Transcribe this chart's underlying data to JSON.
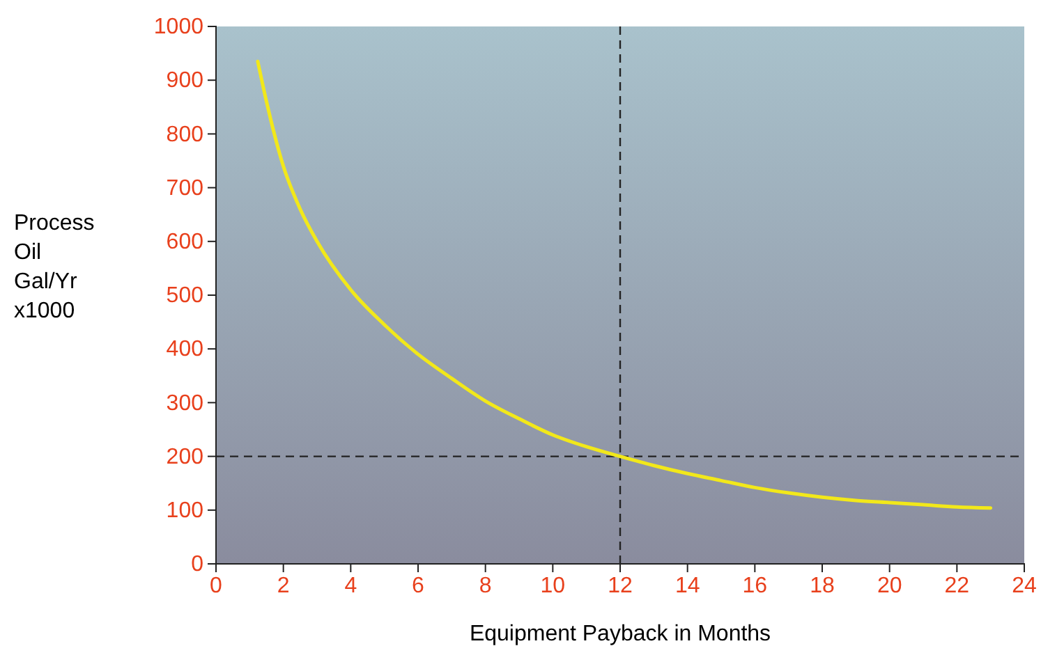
{
  "chart_data": {
    "type": "line",
    "xlabel": "Equipment Payback in Months",
    "ylabel": "Process Oil Gal/Yr x1000",
    "x": [
      1.24,
      1.5,
      2,
      2.5,
      3,
      4,
      5,
      6,
      7,
      8,
      9,
      10,
      11,
      12,
      13,
      14,
      15,
      16,
      17,
      18,
      19,
      20,
      21,
      22,
      23
    ],
    "series": [
      {
        "color": "#f2e81a",
        "values": [
          935,
          860,
          740,
          660,
          600,
          510,
          445,
          390,
          345,
          303,
          270,
          240,
          218,
          200,
          183,
          168,
          155,
          142,
          132,
          124,
          118,
          114,
          110,
          106,
          104
        ]
      }
    ],
    "xlim": [
      0,
      24
    ],
    "xticks": [
      0,
      2,
      4,
      6,
      8,
      10,
      12,
      14,
      16,
      18,
      20,
      22,
      24
    ],
    "ylim": [
      0,
      1000
    ],
    "yticks": [
      0,
      100,
      200,
      300,
      400,
      500,
      600,
      700,
      800,
      900,
      1000
    ],
    "ref_lines": [
      {
        "axis": "x",
        "value": 12,
        "color": "#222222",
        "line_style": "dashed"
      },
      {
        "axis": "y",
        "value": 200,
        "color": "#222222",
        "line_style": "dashed"
      }
    ],
    "grid": false,
    "marker": "none",
    "line_style": "solid"
  }
}
